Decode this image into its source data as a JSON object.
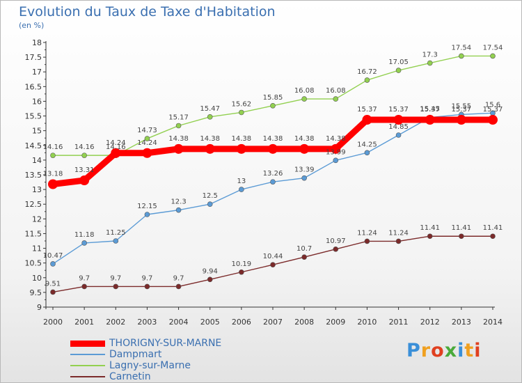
{
  "chart_data": {
    "type": "line",
    "title": "Evolution du Taux de Taxe d'Habitation",
    "subtitle": "(en %)",
    "xlabel": "",
    "ylabel": "",
    "categories": [
      "2000",
      "2001",
      "2002",
      "2003",
      "2004",
      "2005",
      "2006",
      "2007",
      "2008",
      "2009",
      "2010",
      "2011",
      "2012",
      "2013",
      "2014"
    ],
    "ylim": [
      9,
      18
    ],
    "yticks": [
      "9",
      "9.5",
      "10",
      "10.5",
      "11",
      "11.5",
      "12",
      "12.5",
      "13",
      "13.5",
      "14",
      "14.5",
      "15",
      "15.5",
      "16",
      "16.5",
      "17",
      "17.5",
      "18"
    ],
    "grid": false,
    "legend_position": "bottom-left",
    "series": [
      {
        "name": "THORIGNY-SUR-MARNE",
        "color": "#ff0000",
        "values": [
          13.18,
          13.31,
          14.24,
          14.24,
          14.38,
          14.38,
          14.38,
          14.38,
          14.38,
          14.38,
          15.37,
          15.37,
          15.37,
          15.37,
          15.37
        ],
        "labels": [
          "13.18",
          "13.31",
          "14.24",
          "14.24",
          "14.38",
          "14.38",
          "14.38",
          "14.38",
          "14.38",
          "14.38",
          "15.37",
          "15.37",
          "15.37",
          "15.37",
          "15.37"
        ]
      },
      {
        "name": "Dampmart",
        "color": "#5b9bd5",
        "values": [
          10.47,
          11.18,
          11.25,
          12.15,
          12.3,
          12.5,
          13,
          13.26,
          13.39,
          13.99,
          14.25,
          14.85,
          15.45,
          15.55,
          15.6
        ],
        "labels": [
          "10.47",
          "11.18",
          "11.25",
          "12.15",
          "12.3",
          "12.5",
          "13",
          "13.26",
          "13.39",
          "13.99",
          "14.25",
          "14.85",
          "15.45",
          "15.55",
          "15.6"
        ]
      },
      {
        "name": "Lagny-sur-Marne",
        "color": "#92d050",
        "values": [
          14.16,
          14.16,
          14.16,
          14.73,
          15.17,
          15.47,
          15.62,
          15.85,
          16.08,
          16.08,
          16.72,
          17.05,
          17.3,
          17.54,
          17.54
        ],
        "labels": [
          "14.16",
          "14.16",
          "14.16",
          "14.73",
          "15.17",
          "15.47",
          "15.62",
          "15.85",
          "16.08",
          "16.08",
          "16.72",
          "17.05",
          "17.3",
          "17.54",
          "17.54"
        ]
      },
      {
        "name": "Carnetin",
        "color": "#7b2a2a",
        "values": [
          9.51,
          9.7,
          9.7,
          9.7,
          9.7,
          9.94,
          10.19,
          10.44,
          10.7,
          10.97,
          11.24,
          11.24,
          11.41,
          11.41,
          11.41
        ],
        "labels": [
          "9.51",
          "9.7",
          "9.7",
          "9.7",
          "9.7",
          "9.94",
          "10.19",
          "10.44",
          "10.7",
          "10.97",
          "11.24",
          "11.24",
          "11.41",
          "11.41",
          "11.41"
        ]
      }
    ]
  },
  "logo": {
    "text": "Proxiti",
    "letters": [
      {
        "ch": "P",
        "color": "#3a8fd8"
      },
      {
        "ch": "r",
        "color": "#f0a020"
      },
      {
        "ch": "o",
        "color": "#e04020"
      },
      {
        "ch": "x",
        "color": "#4aaa3a"
      },
      {
        "ch": "i",
        "color": "#3a8fd8"
      },
      {
        "ch": "t",
        "color": "#f0a020"
      },
      {
        "ch": "i",
        "color": "#e04020"
      }
    ]
  }
}
